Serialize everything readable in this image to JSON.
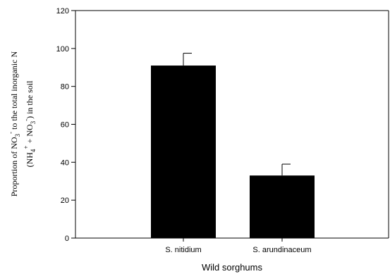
{
  "chart_data": {
    "type": "bar",
    "categories": [
      "S. nitidium",
      "S. arundinaceum"
    ],
    "values": [
      91,
      33
    ],
    "error": [
      6.5,
      6
    ],
    "xlabel": "Wild sorghums",
    "ylabel_line1": {
      "text1": "Proportion of NO",
      "sub1": "3",
      "sup1": "-",
      "text2": " to the total inorganic N"
    },
    "ylabel_line2": {
      "text1": "(NH",
      "sub1": "4",
      "sup1": "+",
      "text2": " + NO",
      "sub2": "3",
      "sup2": "-",
      "text3": ") in the soil"
    },
    "ylim": [
      0,
      120
    ],
    "yticks": [
      0,
      20,
      40,
      60,
      80,
      100,
      120
    ],
    "bar_color": "#000000",
    "grid": false
  }
}
